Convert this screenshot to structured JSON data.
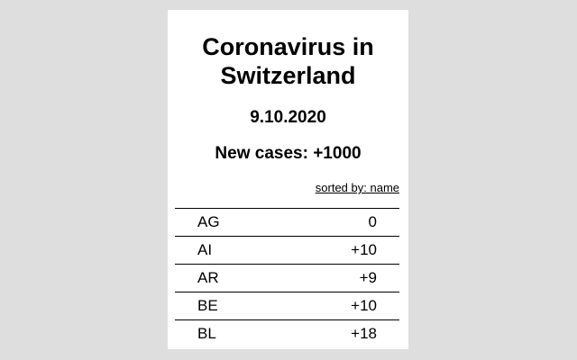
{
  "header": {
    "title_line1": "Coronavirus in",
    "title_line2": "Switzerland",
    "date": "9.10.2020",
    "new_cases": "New cases: +1000"
  },
  "sort": {
    "label": "sorted by: name"
  },
  "rows": [
    {
      "canton": "AG",
      "value": "0"
    },
    {
      "canton": "AI",
      "value": "+10"
    },
    {
      "canton": "AR",
      "value": "+9"
    },
    {
      "canton": "BE",
      "value": "+10"
    },
    {
      "canton": "BL",
      "value": "+18"
    }
  ],
  "colors": {
    "background": "#dedede",
    "card": "#ffffff",
    "text": "#000000"
  }
}
